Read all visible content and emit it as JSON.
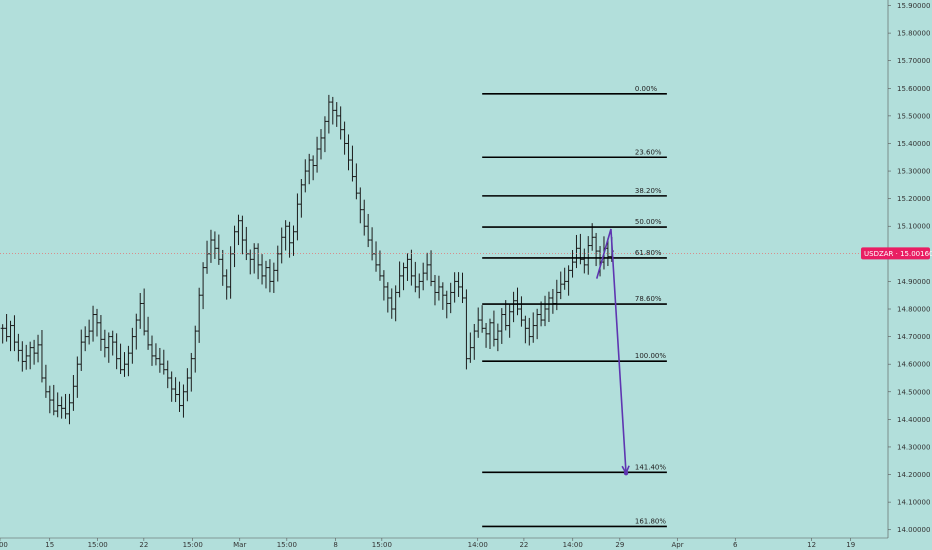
{
  "chart_data": {
    "type": "ohlc",
    "symbol_tag": "USDZAR · 15.00160",
    "current_price": 15.0016,
    "colors": {
      "background": "#b2dfdb",
      "bars": "#1b1b1b",
      "tag": "#e91e63",
      "projection": "#5e35b1",
      "fib_lines": "#000000"
    },
    "ylim": [
      13.97,
      15.92
    ],
    "y_ticks": [
      {
        "value": 15.9,
        "label": "15.90000"
      },
      {
        "value": 15.8,
        "label": "15.80000"
      },
      {
        "value": 15.7,
        "label": "15.70000"
      },
      {
        "value": 15.6,
        "label": "15.60000"
      },
      {
        "value": 15.5,
        "label": "15.50000"
      },
      {
        "value": 15.4,
        "label": "15.40000"
      },
      {
        "value": 15.3,
        "label": "15.30000"
      },
      {
        "value": 15.2,
        "label": "15.20000"
      },
      {
        "value": 15.1,
        "label": "15.10000"
      },
      {
        "value": 14.9,
        "label": "14.90000"
      },
      {
        "value": 14.8,
        "label": "14.80000"
      },
      {
        "value": 14.7,
        "label": "14.70000"
      },
      {
        "value": 14.6,
        "label": "14.60000"
      },
      {
        "value": 14.5,
        "label": "14.50000"
      },
      {
        "value": 14.4,
        "label": "14.40000"
      },
      {
        "value": 14.3,
        "label": "14.30000"
      },
      {
        "value": 14.2,
        "label": "14.20000"
      },
      {
        "value": 14.1,
        "label": "14.10000"
      },
      {
        "value": 14.0,
        "label": "14.00000"
      }
    ],
    "x_range": [
      0,
      100
    ],
    "x_ticks": [
      {
        "x": 0,
        "label": "4:00"
      },
      {
        "x": 5.6,
        "label": "15"
      },
      {
        "x": 11.0,
        "label": "15:00"
      },
      {
        "x": 16.2,
        "label": "22"
      },
      {
        "x": 21.7,
        "label": "15:00"
      },
      {
        "x": 27.0,
        "label": "Mar"
      },
      {
        "x": 32.3,
        "label": "15:00"
      },
      {
        "x": 37.8,
        "label": "8"
      },
      {
        "x": 43.0,
        "label": "15:00"
      },
      {
        "x": 53.8,
        "label": "14:00"
      },
      {
        "x": 59.0,
        "label": "22"
      },
      {
        "x": 64.5,
        "label": "14:00"
      },
      {
        "x": 69.8,
        "label": "29"
      },
      {
        "x": 76.3,
        "label": "Apr"
      },
      {
        "x": 82.8,
        "label": "6"
      },
      {
        "x": 91.4,
        "label": "12"
      },
      {
        "x": 95.8,
        "label": "19"
      }
    ],
    "fib_levels": [
      {
        "label": "0.00%",
        "price": 15.58
      },
      {
        "label": "23.60%",
        "price": 15.35
      },
      {
        "label": "38.20%",
        "price": 15.21
      },
      {
        "label": "50.00%",
        "price": 15.097
      },
      {
        "label": "61.80%",
        "price": 14.985
      },
      {
        "label": "78.60%",
        "price": 14.818
      },
      {
        "label": "100.00%",
        "price": 14.611
      },
      {
        "label": "141.40%",
        "price": 14.208
      },
      {
        "label": "161.80%",
        "price": 14.012
      }
    ],
    "fib_x_range": [
      54.3,
      75.1
    ],
    "projection": [
      {
        "x": 67.2,
        "price": 14.91
      },
      {
        "x": 68.8,
        "price": 15.09
      },
      {
        "x": 70.5,
        "price": 14.205
      }
    ],
    "series_close": [
      14.73,
      14.7,
      14.74,
      14.68,
      14.65,
      14.61,
      14.63,
      14.66,
      14.64,
      14.67,
      14.55,
      14.5,
      14.47,
      14.43,
      14.45,
      14.44,
      14.42,
      14.46,
      14.52,
      14.6,
      14.68,
      14.7,
      14.72,
      14.78,
      14.75,
      14.69,
      14.66,
      14.7,
      14.68,
      14.62,
      14.58,
      14.6,
      14.64,
      14.7,
      14.76,
      14.82,
      14.72,
      14.67,
      14.63,
      14.62,
      14.6,
      14.58,
      14.55,
      14.51,
      14.49,
      14.45,
      14.5,
      14.55,
      14.62,
      14.72,
      14.85,
      14.95,
      15.0,
      15.05,
      15.02,
      14.98,
      14.92,
      14.88,
      15.0,
      15.08,
      15.12,
      15.05,
      15.0,
      14.98,
      15.02,
      14.96,
      14.92,
      14.95,
      14.9,
      14.94,
      15.0,
      15.06,
      15.1,
      15.04,
      15.08,
      15.18,
      15.25,
      15.3,
      15.34,
      15.32,
      15.38,
      15.42,
      15.48,
      15.55,
      15.52,
      15.5,
      15.45,
      15.4,
      15.34,
      15.28,
      15.22,
      15.16,
      15.1,
      15.05,
      15.0,
      14.96,
      14.92,
      14.88,
      14.84,
      14.8,
      14.86,
      14.92,
      14.95,
      14.98,
      14.92,
      14.88,
      14.9,
      14.93,
      14.96,
      14.9,
      14.86,
      14.88,
      14.85,
      14.82,
      14.86,
      14.9,
      14.88,
      14.84,
      14.62,
      14.66,
      14.72,
      14.76,
      14.73,
      14.71,
      14.75,
      14.69,
      14.72,
      14.78,
      14.74,
      14.79,
      14.83,
      14.8,
      14.76,
      14.73,
      14.7,
      14.74,
      14.78,
      14.76,
      14.8,
      14.84,
      14.82,
      14.86,
      14.89,
      14.9,
      14.94,
      14.97,
      15.02,
      14.98,
      14.96,
      15.03,
      15.06,
      15.01,
      14.97,
      15.02,
      14.99,
      15.01
    ],
    "grid": false,
    "legend": "none"
  }
}
